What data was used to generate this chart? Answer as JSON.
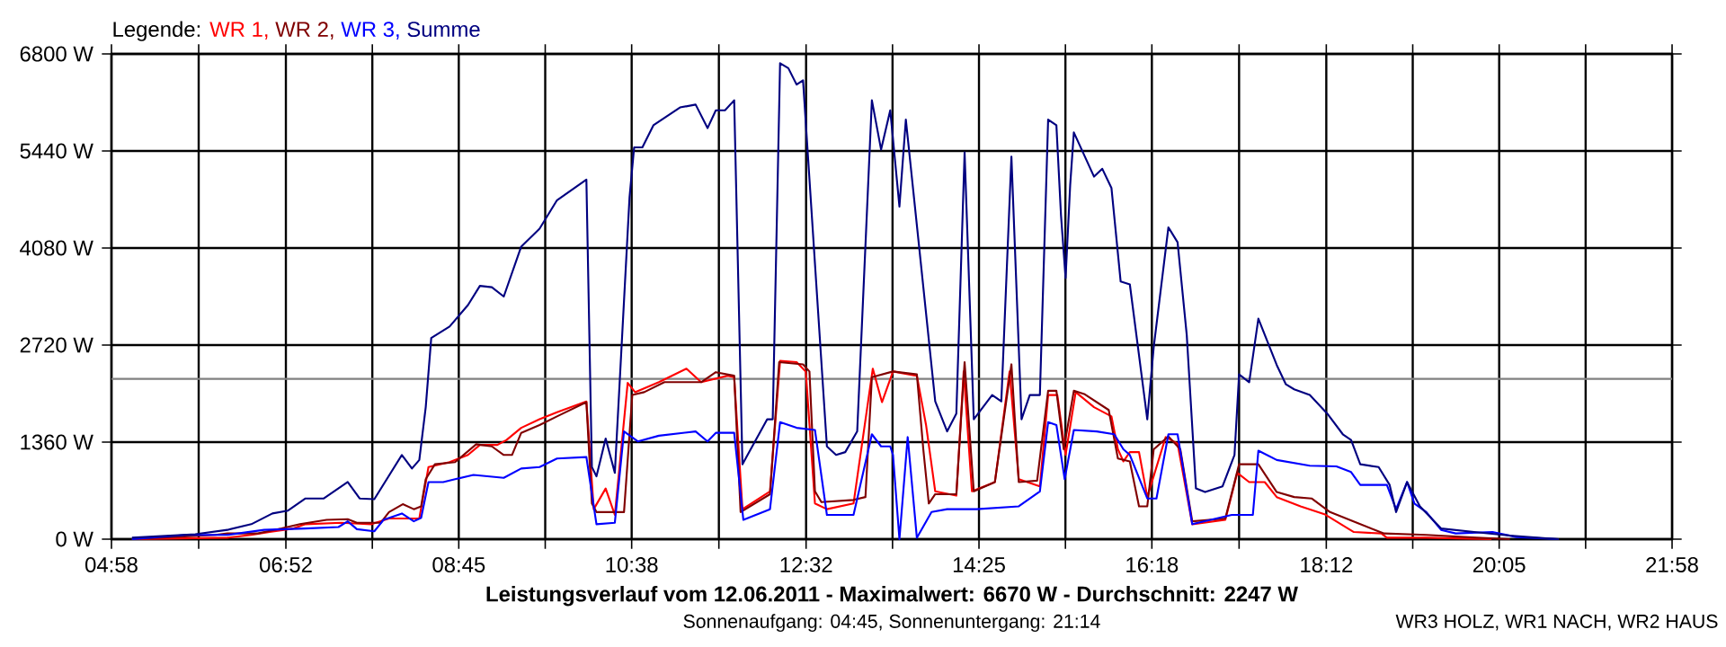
{
  "chart_data": {
    "type": "line",
    "title": "Leistungsverlauf vom 12.06.2011 - Maximalwert: 6670 W - Durchschnitt: 2247 W",
    "subtitle": "Sonnenaufgang: 04:45, Sonnenuntergang: 21:14",
    "annotations": [
      "WR3 HOLZ, WR1 NACH, WR2 HAUS"
    ],
    "legend_title": "Legende:",
    "legend": "top left",
    "grid": true,
    "xlim": [
      4.9667,
      21.9667
    ],
    "xticks": [
      {
        "value": 4.9667,
        "label": "04:58"
      },
      {
        "value": 5.9167,
        "label": null
      },
      {
        "value": 6.8667,
        "label": "06:52"
      },
      {
        "value": 7.8083,
        "label": null
      },
      {
        "value": 8.75,
        "label": "08:45"
      },
      {
        "value": 9.6917,
        "label": null
      },
      {
        "value": 10.6333,
        "label": "10:38"
      },
      {
        "value": 11.5833,
        "label": null
      },
      {
        "value": 12.5333,
        "label": "12:32"
      },
      {
        "value": 13.475,
        "label": null
      },
      {
        "value": 14.4167,
        "label": "14:25"
      },
      {
        "value": 15.3583,
        "label": null
      },
      {
        "value": 16.3,
        "label": "16:18"
      },
      {
        "value": 17.25,
        "label": null
      },
      {
        "value": 18.2,
        "label": "18:12"
      },
      {
        "value": 19.1417,
        "label": null
      },
      {
        "value": 20.0833,
        "label": "20:05"
      },
      {
        "value": 21.025,
        "label": null
      },
      {
        "value": 21.9667,
        "label": "21:58"
      }
    ],
    "ylim": [
      0,
      6800
    ],
    "yticks": [
      {
        "value": 0,
        "label": "0 W"
      },
      {
        "value": 1360,
        "label": "1360 W"
      },
      {
        "value": 2720,
        "label": "2720 W"
      },
      {
        "value": 4080,
        "label": "4080 W"
      },
      {
        "value": 5440,
        "label": "5440 W"
      },
      {
        "value": 6800,
        "label": "6800 W"
      }
    ],
    "ref_lines": [
      {
        "axis": "y",
        "value": 2247,
        "color": "#808080"
      }
    ],
    "series": [
      {
        "name": "WR 1,",
        "color": "#ff0000",
        "x": [
          5.19,
          6.23,
          6.49,
          6.69,
          6.95,
          7.08,
          7.47,
          7.8,
          7.99,
          8.32,
          8.42,
          8.65,
          8.85,
          8.98,
          9.17,
          9.27,
          9.43,
          9.63,
          9.82,
          10.14,
          10.22,
          10.35,
          10.45,
          10.59,
          10.67,
          10.93,
          11.23,
          11.39,
          11.68,
          11.75,
          11.84,
          12.14,
          12.25,
          12.43,
          12.53,
          12.63,
          12.76,
          13.05,
          13.26,
          13.36,
          13.48,
          13.74,
          13.84,
          13.94,
          14.17,
          14.25,
          14.34,
          14.59,
          14.75,
          14.85,
          15.08,
          15.17,
          15.27,
          15.36,
          15.47,
          15.67,
          15.86,
          15.93,
          15.99,
          16.06,
          16.16,
          16.25,
          16.45,
          16.58,
          16.74,
          17.1,
          17.23,
          17.36,
          17.53,
          17.66,
          17.92,
          18.18,
          18.5,
          18.8,
          18.86,
          19.29,
          20.0
        ],
        "values": [
          0,
          20,
          60,
          100,
          150,
          210,
          230,
          210,
          290,
          290,
          1010,
          1080,
          1180,
          1320,
          1320,
          1390,
          1560,
          1680,
          1780,
          1930,
          420,
          710,
          340,
          2190,
          2060,
          2200,
          2390,
          2200,
          2290,
          2270,
          420,
          670,
          2500,
          2480,
          2350,
          500,
          420,
          500,
          2390,
          1920,
          2350,
          2290,
          1600,
          670,
          610,
          2350,
          670,
          800,
          2350,
          840,
          740,
          2020,
          2020,
          1180,
          2060,
          1850,
          1720,
          1260,
          1090,
          1220,
          1220,
          590,
          1430,
          1340,
          210,
          270,
          930,
          800,
          800,
          590,
          460,
          350,
          100,
          80,
          20,
          20,
          0
        ]
      },
      {
        "name": "WR 2,",
        "color": "#800000",
        "x": [
          5.19,
          6.1,
          6.23,
          6.56,
          6.82,
          7.02,
          7.31,
          7.54,
          7.64,
          7.9,
          7.99,
          8.14,
          8.26,
          8.34,
          8.39,
          8.49,
          8.71,
          8.94,
          9.11,
          9.24,
          9.33,
          9.43,
          9.63,
          9.82,
          10.14,
          10.2,
          10.25,
          10.55,
          10.64,
          10.77,
          10.99,
          11.39,
          11.55,
          11.75,
          11.82,
          12.14,
          12.24,
          12.5,
          12.57,
          12.63,
          12.7,
          13.05,
          13.18,
          13.25,
          13.48,
          13.74,
          13.81,
          13.87,
          13.94,
          14.17,
          14.26,
          14.36,
          14.59,
          14.77,
          14.85,
          15.05,
          15.17,
          15.26,
          15.34,
          15.45,
          15.57,
          15.83,
          15.93,
          16.06,
          16.16,
          16.25,
          16.32,
          16.48,
          16.61,
          16.74,
          17.1,
          17.25,
          17.46,
          17.66,
          17.85,
          18.04,
          18.24,
          18.57,
          18.83,
          19.29,
          19.84,
          20.2
        ],
        "values": [
          0,
          60,
          80,
          80,
          150,
          210,
          270,
          280,
          230,
          230,
          380,
          490,
          420,
          460,
          840,
          1050,
          1080,
          1330,
          1300,
          1180,
          1180,
          1490,
          1600,
          1720,
          1920,
          500,
          380,
          380,
          2020,
          2060,
          2200,
          2200,
          2340,
          2290,
          380,
          630,
          2480,
          2450,
          2350,
          670,
          520,
          550,
          590,
          2270,
          2350,
          2310,
          1260,
          500,
          630,
          630,
          2480,
          670,
          800,
          2450,
          800,
          820,
          2080,
          2080,
          1260,
          2080,
          2030,
          1810,
          1130,
          1090,
          460,
          460,
          1260,
          1440,
          1260,
          250,
          290,
          1050,
          1050,
          660,
          590,
          570,
          380,
          210,
          80,
          60,
          20,
          0
        ]
      },
      {
        "name": "WR 3,",
        "color": "#0000ff",
        "x": [
          5.19,
          5.78,
          6.23,
          6.63,
          7.08,
          7.44,
          7.54,
          7.64,
          7.83,
          7.93,
          8.13,
          8.26,
          8.34,
          8.42,
          8.58,
          8.71,
          8.91,
          9.24,
          9.43,
          9.63,
          9.82,
          10.14,
          10.25,
          10.45,
          10.55,
          10.7,
          10.93,
          11.33,
          11.46,
          11.55,
          11.75,
          11.85,
          12.14,
          12.25,
          12.43,
          12.63,
          12.76,
          13.05,
          13.25,
          13.35,
          13.45,
          13.48,
          13.55,
          13.64,
          13.74,
          13.9,
          14.07,
          14.39,
          14.85,
          15.08,
          15.17,
          15.26,
          15.35,
          15.45,
          15.7,
          15.89,
          15.99,
          16.06,
          16.25,
          16.35,
          16.48,
          16.58,
          16.74,
          17.17,
          17.4,
          17.46,
          17.66,
          18.02,
          18.31,
          18.47,
          18.57,
          18.86,
          18.96,
          19.08,
          19.16,
          19.29,
          19.45,
          19.61,
          20.01,
          20.27,
          20.73
        ],
        "values": [
          0,
          60,
          60,
          130,
          150,
          170,
          250,
          140,
          110,
          270,
          360,
          250,
          300,
          800,
          800,
          840,
          900,
          860,
          990,
          1010,
          1130,
          1150,
          210,
          230,
          1510,
          1370,
          1450,
          1510,
          1370,
          1490,
          1490,
          270,
          420,
          1640,
          1560,
          1530,
          340,
          340,
          1470,
          1300,
          1300,
          1180,
          0,
          1430,
          20,
          380,
          420,
          420,
          460,
          670,
          1640,
          1600,
          840,
          1530,
          1510,
          1470,
          1260,
          1180,
          570,
          570,
          1470,
          1470,
          210,
          340,
          340,
          1240,
          1110,
          1030,
          1020,
          940,
          760,
          760,
          420,
          800,
          500,
          380,
          130,
          80,
          100,
          30,
          0
        ]
      },
      {
        "name": "Summe",
        "color": "#000080",
        "x": [
          5.19,
          5.88,
          6.23,
          6.49,
          6.72,
          6.89,
          7.08,
          7.28,
          7.54,
          7.67,
          7.83,
          8.13,
          8.24,
          8.32,
          8.39,
          8.45,
          8.65,
          8.85,
          8.98,
          9.11,
          9.24,
          9.43,
          9.63,
          9.82,
          10.14,
          10.2,
          10.25,
          10.35,
          10.45,
          10.61,
          10.66,
          10.75,
          10.87,
          11.16,
          11.33,
          11.46,
          11.55,
          11.65,
          11.75,
          11.84,
          12.11,
          12.17,
          12.25,
          12.34,
          12.43,
          12.5,
          12.63,
          12.76,
          12.86,
          12.96,
          13.09,
          13.25,
          13.35,
          13.45,
          13.55,
          13.62,
          13.77,
          13.94,
          14.07,
          14.17,
          14.26,
          14.36,
          14.56,
          14.66,
          14.77,
          14.88,
          14.97,
          15.08,
          15.17,
          15.26,
          15.31,
          15.36,
          15.41,
          15.45,
          15.67,
          15.76,
          15.86,
          15.96,
          16.06,
          16.25,
          16.32,
          16.48,
          16.58,
          16.68,
          16.78,
          16.88,
          17.07,
          17.2,
          17.25,
          17.36,
          17.46,
          17.66,
          17.76,
          17.85,
          18.02,
          18.21,
          18.38,
          18.47,
          18.57,
          18.77,
          18.89,
          18.96,
          19.08,
          19.22,
          19.45,
          19.81,
          20.2,
          20.73
        ],
        "values": [
          20,
          70,
          130,
          210,
          360,
          400,
          570,
          570,
          800,
          570,
          560,
          1180,
          990,
          1110,
          1850,
          2820,
          2980,
          3280,
          3550,
          3530,
          3400,
          4100,
          4350,
          4750,
          5040,
          1010,
          880,
          1410,
          930,
          4790,
          5490,
          5490,
          5800,
          6050,
          6090,
          5760,
          6010,
          6010,
          6150,
          1050,
          1680,
          1680,
          6670,
          6600,
          6370,
          6430,
          3860,
          1300,
          1180,
          1220,
          1510,
          6150,
          5460,
          6010,
          4660,
          5880,
          4030,
          1930,
          1510,
          1760,
          5420,
          1680,
          2020,
          1930,
          5360,
          1680,
          2020,
          2020,
          5880,
          5800,
          4540,
          3660,
          4960,
          5700,
          5080,
          5190,
          4920,
          3610,
          3570,
          1680,
          2690,
          4370,
          4160,
          2860,
          710,
          660,
          740,
          1180,
          2310,
          2200,
          3090,
          2440,
          2170,
          2100,
          2020,
          1760,
          1470,
          1390,
          1050,
          1010,
          760,
          380,
          800,
          460,
          150,
          100,
          50,
          0
        ]
      }
    ]
  }
}
